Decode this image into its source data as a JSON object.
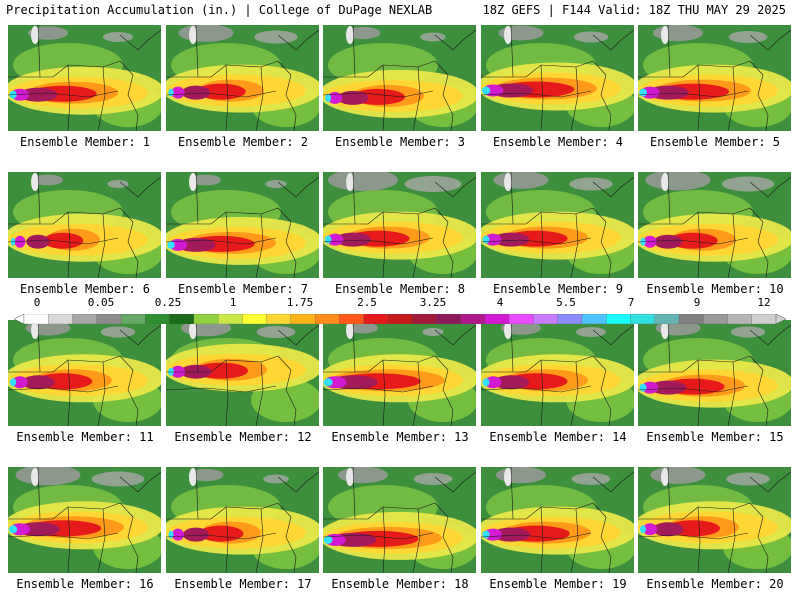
{
  "header": {
    "left": "Precipitation Accumulation (in.) | College of DuPage NEXLAB",
    "right": "18Z GEFS | F144 Valid: 18Z THU MAY 29 2025"
  },
  "panel_label_prefix": "Ensemble Member:",
  "members": [
    {
      "id": "1",
      "label": "Ensemble Member: 1",
      "intensity": 0.75,
      "band_lat": 0.62,
      "gray_north": 0.2
    },
    {
      "id": "2",
      "label": "Ensemble Member: 2",
      "intensity": 0.55,
      "band_lat": 0.6,
      "gray_north": 0.35
    },
    {
      "id": "3",
      "label": "Ensemble Member: 3",
      "intensity": 0.6,
      "band_lat": 0.65,
      "gray_north": 0.15
    },
    {
      "id": "4",
      "label": "Ensemble Member: 4",
      "intensity": 0.85,
      "band_lat": 0.58,
      "gray_north": 0.25
    },
    {
      "id": "5",
      "label": "Ensemble Member: 5",
      "intensity": 0.8,
      "band_lat": 0.6,
      "gray_north": 0.3
    },
    {
      "id": "6",
      "label": "Ensemble Member: 6",
      "intensity": 0.45,
      "band_lat": 0.62,
      "gray_north": 0.1
    },
    {
      "id": "7",
      "label": "Ensemble Member: 7",
      "intensity": 0.75,
      "band_lat": 0.65,
      "gray_north": 0.1
    },
    {
      "id": "8",
      "label": "Ensemble Member: 8",
      "intensity": 0.7,
      "band_lat": 0.6,
      "gray_north": 0.5
    },
    {
      "id": "9",
      "label": "Ensemble Member: 9",
      "intensity": 0.7,
      "band_lat": 0.6,
      "gray_north": 0.35
    },
    {
      "id": "10",
      "label": "Ensemble Member: 10",
      "intensity": 0.55,
      "band_lat": 0.62,
      "gray_north": 0.45
    },
    {
      "id": "11",
      "label": "Ensemble Member: 11",
      "intensity": 0.65,
      "band_lat": 0.55,
      "gray_north": 0.25
    },
    {
      "id": "12",
      "label": "Ensemble Member: 12",
      "intensity": 0.6,
      "band_lat": 0.45,
      "gray_north": 0.3
    },
    {
      "id": "13",
      "label": "Ensemble Member: 13",
      "intensity": 0.95,
      "band_lat": 0.55,
      "gray_north": 0.1
    },
    {
      "id": "14",
      "label": "Ensemble Member: 14",
      "intensity": 0.7,
      "band_lat": 0.55,
      "gray_north": 0.2
    },
    {
      "id": "15",
      "label": "Ensemble Member: 15",
      "intensity": 0.7,
      "band_lat": 0.6,
      "gray_north": 0.25
    },
    {
      "id": "16",
      "label": "Ensemble Member: 16",
      "intensity": 0.85,
      "band_lat": 0.55,
      "gray_north": 0.45
    },
    {
      "id": "17",
      "label": "Ensemble Member: 17",
      "intensity": 0.5,
      "band_lat": 0.6,
      "gray_north": 0.15
    },
    {
      "id": "18",
      "label": "Ensemble Member: 18",
      "intensity": 0.9,
      "band_lat": 0.65,
      "gray_north": 0.3
    },
    {
      "id": "19",
      "label": "Ensemble Member: 19",
      "intensity": 0.75,
      "band_lat": 0.6,
      "gray_north": 0.3
    },
    {
      "id": "20",
      "label": "Ensemble Member: 20",
      "intensity": 0.6,
      "band_lat": 0.55,
      "gray_north": 0.35
    }
  ],
  "colorbar": {
    "tick_labels": [
      "0",
      "0.05",
      "0.25",
      "1",
      "1.75",
      "2.5",
      "3.25",
      "4",
      "5.5",
      "7",
      "9",
      "12"
    ],
    "colors": [
      "#ffffff",
      "#d9d9d9",
      "#a8a8a8",
      "#8c8c8c",
      "#66a866",
      "#2f8f2f",
      "#1a6e1a",
      "#8fd13f",
      "#c8e84a",
      "#ffff33",
      "#ffd633",
      "#ffb31a",
      "#ff8c1a",
      "#ff5a1a",
      "#e61a1a",
      "#c41a1a",
      "#a31a3a",
      "#8c1a5a",
      "#b01a8c",
      "#d11ad1",
      "#e84dff",
      "#c77dff",
      "#8c8cff",
      "#4dc4ff",
      "#1affff",
      "#33e0e0",
      "#66b3b3",
      "#808080",
      "#9a9a9a",
      "#b5b5b5",
      "#cfcfcf"
    ]
  }
}
